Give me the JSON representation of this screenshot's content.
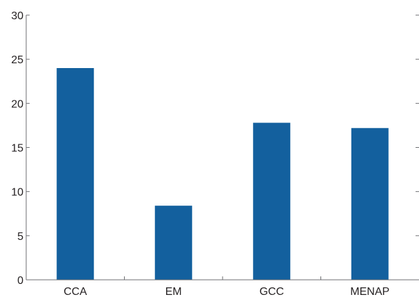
{
  "chart_data": {
    "type": "bar",
    "title": "",
    "xlabel": "",
    "ylabel": "",
    "categories": [
      "CCA",
      "EM",
      "GCC",
      "MENAP"
    ],
    "values": [
      24.0,
      8.4,
      17.8,
      17.2
    ],
    "ylim": [
      0,
      30
    ],
    "yticks": [
      "0",
      "5",
      "10",
      "15",
      "20",
      "25",
      "30"
    ],
    "grid": false,
    "legend": "none",
    "colors": {
      "bar": "#13609e",
      "axis": "#6d6e71",
      "text": "#231f20"
    }
  }
}
